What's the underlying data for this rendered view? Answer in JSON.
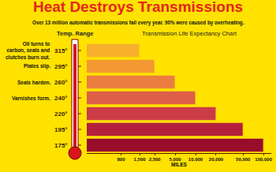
{
  "chart_data": {
    "type": "bar",
    "orientation": "horizontal",
    "title": "Heat Destroys Transmissions",
    "subtitle": "Over 13 million automatic transmissions fail every year. 90% were caused by overheating.",
    "y_label": "Temp. Range",
    "chart_heading": "Transmission Life Expectancy Chart",
    "x_label": "MILES",
    "categories": [
      "315°",
      "295°",
      "260°",
      "240°",
      "220°",
      "195°",
      "175°"
    ],
    "values": [
      1500,
      2500,
      5000,
      10000,
      20000,
      50000,
      100000
    ],
    "colors": [
      "#f7b02c",
      "#f49834",
      "#ec7d40",
      "#de5f48",
      "#cc3c48",
      "#b41f3c",
      "#980c2c"
    ],
    "log": "x",
    "xlim": [
      250,
      130000
    ],
    "xticks": [
      800,
      {
        "value": 1500,
        "label": "1,500"
      },
      {
        "value": 2500,
        "label": "2,500"
      },
      {
        "value": 5000,
        "label": "5,000"
      },
      {
        "value": 10000,
        "label": "10,000"
      },
      {
        "value": 20000,
        "label": "20,000"
      },
      {
        "value": 50000,
        "label": "50,000"
      },
      {
        "value": 100000,
        "label": "100,000"
      }
    ],
    "grid": false,
    "annotations": [
      {
        "category": "315°",
        "text": "Oil turns to carbon, seals and clutches burn out."
      },
      {
        "category": "295°",
        "text": "Plates slip."
      },
      {
        "category": "260°",
        "text": "Seals harden."
      },
      {
        "category": "240°",
        "text": "Varnishes form."
      }
    ]
  }
}
